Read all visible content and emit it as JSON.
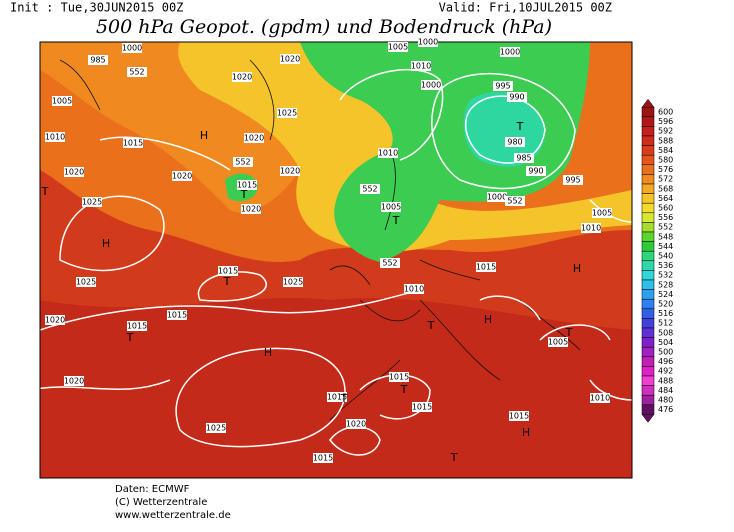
{
  "header": {
    "init": "Init : Tue,30JUN2015 00Z",
    "valid": "Valid: Fri,10JUL2015 00Z",
    "title": "500 hPa Geopot. (gpdm) und Bodendruck (hPa)"
  },
  "scale": {
    "levels": [
      "600",
      "596",
      "592",
      "588",
      "584",
      "580",
      "576",
      "572",
      "568",
      "564",
      "560",
      "556",
      "552",
      "548",
      "544",
      "540",
      "536",
      "532",
      "528",
      "524",
      "520",
      "516",
      "512",
      "508",
      "504",
      "500",
      "496",
      "492",
      "488",
      "484",
      "480",
      "476"
    ],
    "colors": [
      "#9c1414",
      "#b01818",
      "#c41e1e",
      "#d02c1c",
      "#da3e18",
      "#e2561a",
      "#ea701c",
      "#f08a20",
      "#f4a826",
      "#f8c42a",
      "#f4dc2e",
      "#d4e82e",
      "#a4dc2c",
      "#5cd42e",
      "#2ecc3c",
      "#2ed67c",
      "#2ed8ac",
      "#2ed6d6",
      "#2ebee8",
      "#2ea0f0",
      "#2e80ee",
      "#3060e6",
      "#4440de",
      "#6030d6",
      "#8020cc",
      "#a020c0",
      "#c020b4",
      "#e020c4",
      "#f040d4",
      "#d030c0",
      "#a020a0",
      "#601060"
    ]
  },
  "map": {
    "labels": [
      "1000",
      "985",
      "552",
      "1020",
      "1020",
      "1005",
      "1010",
      "1015",
      "1025",
      "1020",
      "1020",
      "552",
      "1015",
      "1020",
      "1020",
      "1025",
      "1020",
      "1015",
      "1025",
      "1025",
      "1020",
      "1015",
      "1015",
      "1020",
      "1025",
      "1020",
      "1015",
      "1015",
      "1015",
      "1015",
      "1015",
      "1005",
      "1000",
      "1000",
      "1010",
      "1000",
      "995",
      "990",
      "985",
      "980",
      "990",
      "995",
      "1000",
      "552",
      "1010",
      "552",
      "1005",
      "552",
      "1015",
      "1010",
      "1005",
      "1010",
      "1005",
      "1010"
    ],
    "markers": [
      "H",
      "H",
      "H",
      "H",
      "H",
      "H",
      "T",
      "T",
      "T",
      "T",
      "T",
      "T",
      "T",
      "T",
      "T",
      "T",
      "T"
    ]
  },
  "footer": [
    "Daten: ECMWF",
    "(C) Wetterzentrale",
    "www.wetterzentrale.de"
  ]
}
